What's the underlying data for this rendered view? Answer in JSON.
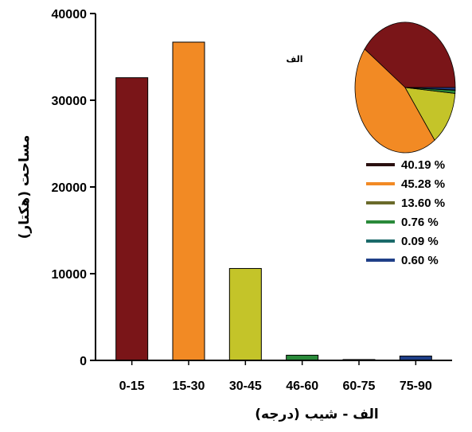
{
  "chart_data": {
    "type": "bar",
    "xlabel": "الف -   شیب (درجه)",
    "ylabel": "مساحت (هکتار)",
    "annotation": "الف",
    "categories": [
      "0-15",
      "15-30",
      "30-45",
      "46-60",
      "60-75",
      "75-90"
    ],
    "values": [
      32600,
      36700,
      10600,
      600,
      100,
      500
    ],
    "colors": [
      "#7a1518",
      "#f28a24",
      "#c4c429",
      "#2a8a3a",
      "#1b6a6a",
      "#1f3f88"
    ],
    "ylim": [
      0,
      40000
    ],
    "yticks": [
      0,
      10000,
      20000,
      30000,
      40000
    ],
    "grid": false,
    "inset_pie": {
      "type": "pie",
      "legend_placement": "right",
      "slices": [
        {
          "label": "40.19 %",
          "value": 40.19,
          "color": "#7a1518"
        },
        {
          "label": "45.28 %",
          "value": 45.28,
          "color": "#f28a24"
        },
        {
          "label": "13.60 %",
          "value": 13.6,
          "color": "#c4c429"
        },
        {
          "label": "0.76 %",
          "value": 0.76,
          "color": "#2a8a3a"
        },
        {
          "label": "0.09 %",
          "value": 0.09,
          "color": "#1b6a6a"
        },
        {
          "label": "0.60 %",
          "value": 0.6,
          "color": "#1f3f88"
        }
      ],
      "legend_swatch_colors": [
        "#2a1010",
        "#f28a24",
        "#6a6a2a",
        "#2a8a3a",
        "#1b6a6a",
        "#1f3f88"
      ]
    }
  }
}
